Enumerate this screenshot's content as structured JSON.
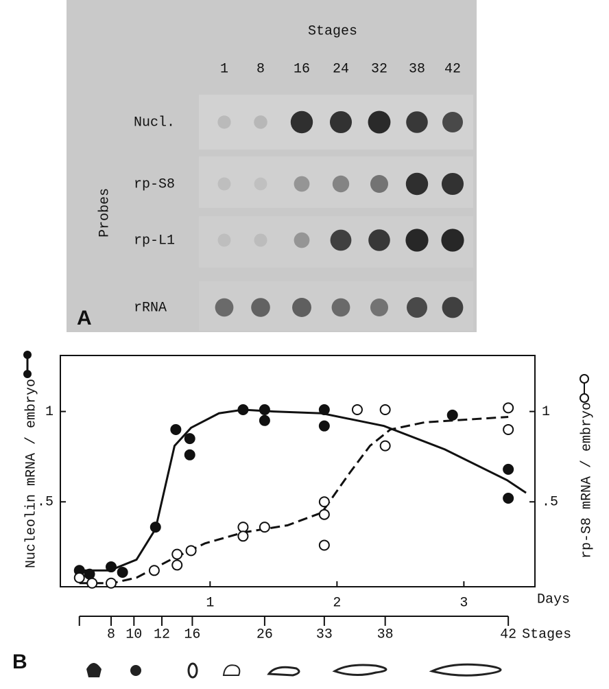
{
  "panel_a": {
    "label": "A",
    "stages_title": "Stages",
    "stages": [
      "1",
      "8",
      "16",
      "24",
      "32",
      "38",
      "42"
    ],
    "probes_title": "Probes",
    "probes": [
      "Nucl.",
      "rp-S8",
      "rp-L1",
      "rRNA"
    ],
    "signal": [
      [
        0.08,
        0.1,
        0.9,
        0.88,
        0.93,
        0.85,
        0.75
      ],
      [
        0.06,
        0.05,
        0.3,
        0.4,
        0.5,
        0.9,
        0.88
      ],
      [
        0.06,
        0.07,
        0.3,
        0.8,
        0.85,
        0.95,
        0.95
      ],
      [
        0.55,
        0.6,
        0.62,
        0.55,
        0.5,
        0.75,
        0.8
      ]
    ]
  },
  "chart_data": {
    "type": "scatter",
    "label": "B",
    "xlabel": "Days",
    "ylabel": "Nucleolin mRNA / embryo",
    "y2label": "rp-S8 mRNA / embryo",
    "xlim": [
      -0.18,
      3.56
    ],
    "xticks": [
      1,
      2,
      3
    ],
    "ylim": [
      0.03,
      1.31
    ],
    "yticks": [
      {
        "value": 0.5,
        "label": ".5"
      },
      1
    ],
    "y2lim": [
      0.03,
      1.31
    ],
    "y2ticks": [
      {
        "value": 0.5,
        "label": ".5"
      },
      1
    ],
    "series": [
      {
        "marker": "filled",
        "line": "solid",
        "color": "#111",
        "x": [
          -0.03,
          0.05,
          0.22,
          0.31,
          0.57,
          0.73,
          0.84,
          0.84,
          1.26,
          1.43,
          1.43,
          1.9,
          1.9,
          2.91,
          3.35,
          3.35
        ],
        "values": [
          0.12,
          0.1,
          0.14,
          0.11,
          0.36,
          0.9,
          0.85,
          0.76,
          1.01,
          1.01,
          0.95,
          1.01,
          0.92,
          0.98,
          0.68,
          0.52
        ],
        "fit_x": [
          -0.03,
          0.21,
          0.42,
          0.57,
          0.72,
          0.85,
          1.07,
          1.26,
          1.5,
          1.88,
          2.37,
          2.85,
          3.34,
          3.49
        ],
        "fit_values": [
          0.12,
          0.12,
          0.18,
          0.35,
          0.81,
          0.91,
          0.99,
          1.01,
          1.0,
          0.99,
          0.92,
          0.79,
          0.62,
          0.55
        ]
      },
      {
        "marker": "open",
        "line": "dashed",
        "color": "#111",
        "axis": "y2",
        "x": [
          -0.03,
          0.07,
          0.22,
          0.56,
          0.74,
          0.74,
          0.85,
          1.26,
          1.26,
          1.43,
          1.9,
          1.9,
          1.9,
          2.16,
          2.38,
          2.38,
          3.35,
          3.35
        ],
        "values": [
          0.08,
          0.05,
          0.05,
          0.12,
          0.21,
          0.15,
          0.23,
          0.36,
          0.31,
          0.36,
          0.5,
          0.43,
          0.26,
          1.01,
          1.01,
          0.81,
          1.02,
          0.9
        ],
        "fit_x": [
          -0.03,
          0.23,
          0.42,
          0.69,
          0.96,
          1.26,
          1.61,
          1.88,
          2.1,
          2.26,
          2.42,
          2.69,
          3.35
        ],
        "fit_values": [
          0.05,
          0.05,
          0.08,
          0.18,
          0.27,
          0.33,
          0.37,
          0.44,
          0.66,
          0.81,
          0.9,
          0.94,
          0.97
        ]
      }
    ],
    "stage_axis": {
      "title": "Stages",
      "positions": [
        -0.03,
        0.22,
        0.4,
        0.62,
        0.86,
        1.43,
        1.9,
        2.38,
        3.35
      ],
      "labels": [
        null,
        "8",
        "10",
        "12",
        "16",
        "26",
        "33",
        "38",
        "42"
      ]
    }
  }
}
